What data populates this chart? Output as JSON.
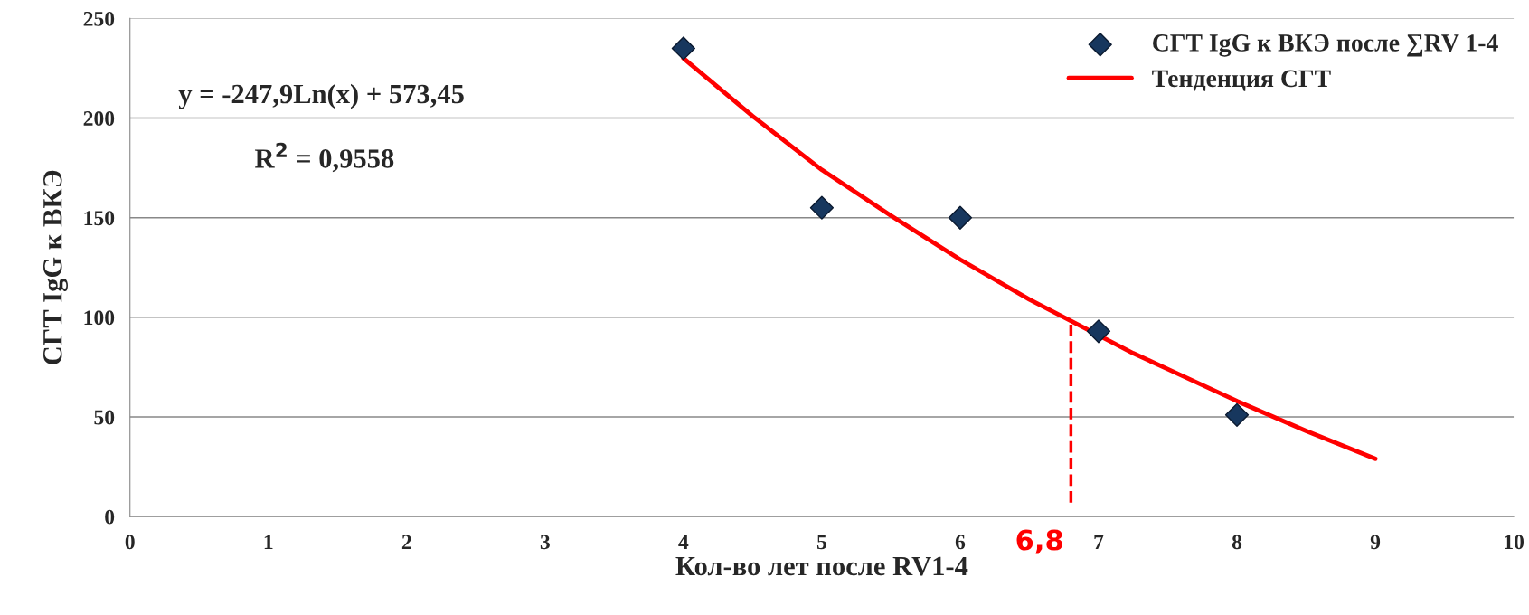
{
  "chart_data": {
    "type": "scatter",
    "xlabel": "Кол-во лет после RV1-4",
    "ylabel": "СГТ IgG к ВКЭ",
    "xlim": [
      0,
      10
    ],
    "xticks": [
      0,
      1,
      2,
      3,
      4,
      5,
      6,
      7,
      8,
      9,
      10
    ],
    "ylim": [
      0,
      250
    ],
    "yticks": [
      0,
      50,
      100,
      150,
      200,
      250
    ],
    "grid": "y",
    "legend": "top right",
    "series": [
      {
        "name": "СГТ IgG к ВКЭ после ∑RV 1-4",
        "marker": "diamond",
        "color": "#17375e",
        "x": [
          4,
          5,
          6,
          7,
          8
        ],
        "values": [
          235,
          155,
          150,
          93,
          51
        ]
      },
      {
        "name": "Тенденция СГТ",
        "type": "line",
        "marker": "none",
        "line_style": "solid",
        "color": "#ff0000",
        "x": [
          4,
          4.5,
          5,
          5.5,
          6,
          6.5,
          6.75,
          7.25,
          7.5,
          8,
          8.5,
          9
        ],
        "values": [
          230,
          201,
          174,
          151,
          129,
          109,
          100,
          82,
          74,
          58,
          43,
          29
        ]
      }
    ],
    "ref_lines": [
      {
        "axis": "x",
        "value": 6.8,
        "label": "6,8",
        "color": "#ff0000",
        "line_style": "dashed"
      }
    ],
    "annotations": [
      "y = -247,9Ln(x) + 573,45",
      "R$^{2}$ = 0,9558"
    ]
  }
}
